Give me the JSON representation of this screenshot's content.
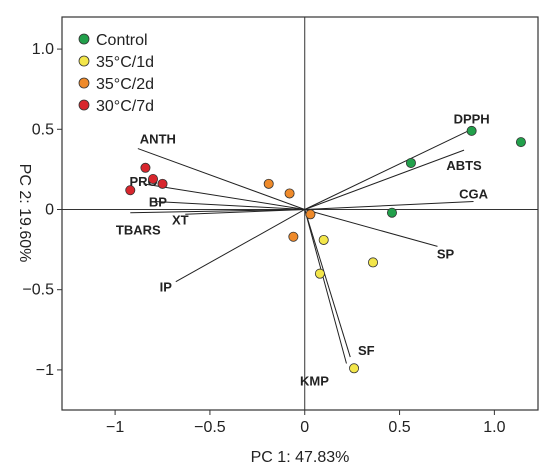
{
  "chart_data": {
    "type": "scatter",
    "title": "",
    "xlabel": "PC 1: 47.83%",
    "ylabel": "PC 2: 19.60%",
    "xlim": [
      -1.28,
      1.23
    ],
    "ylim": [
      -1.25,
      1.2
    ],
    "xticks": [
      -1,
      -0.5,
      0,
      0.5,
      1
    ],
    "xtick_labels": [
      "−1",
      "−0.5",
      "0",
      "0.5",
      "1.0"
    ],
    "yticks": [
      -1,
      -0.5,
      0,
      0.5,
      1
    ],
    "ytick_labels": [
      "−1",
      "−0.5",
      "0",
      "0.5",
      "1.0"
    ],
    "grid": false,
    "legend_position": "top-left",
    "series": [
      {
        "name": "Control",
        "color": "#22a04b",
        "points": [
          [
            1.14,
            0.42
          ],
          [
            0.88,
            0.49
          ],
          [
            0.56,
            0.29
          ],
          [
            0.46,
            -0.02
          ]
        ]
      },
      {
        "name": "35°C/1d",
        "color": "#f3e64a",
        "points": [
          [
            0.1,
            -0.19
          ],
          [
            0.36,
            -0.33
          ],
          [
            0.08,
            -0.4
          ],
          [
            0.26,
            -0.99
          ]
        ]
      },
      {
        "name": "35°C/2d",
        "color": "#ef8a2a",
        "points": [
          [
            -0.19,
            0.16
          ],
          [
            -0.08,
            0.1
          ],
          [
            0.03,
            -0.03
          ],
          [
            -0.06,
            -0.17
          ]
        ]
      },
      {
        "name": "30°C/7d",
        "color": "#d8262d",
        "points": [
          [
            -0.84,
            0.26
          ],
          [
            -0.8,
            0.19
          ],
          [
            -0.75,
            0.16
          ],
          [
            -0.92,
            0.12
          ]
        ]
      }
    ],
    "loadings": [
      {
        "name": "DPPH",
        "x": 0.88,
        "y": 0.5
      },
      {
        "name": "ABTS",
        "x": 0.84,
        "y": 0.37
      },
      {
        "name": "CGA",
        "x": 0.89,
        "y": 0.05
      },
      {
        "name": "SP",
        "x": 0.7,
        "y": -0.23
      },
      {
        "name": "SF",
        "x": 0.24,
        "y": -0.92
      },
      {
        "name": "KMP",
        "x": 0.22,
        "y": -0.96
      },
      {
        "name": "ANTH",
        "x": -0.88,
        "y": 0.38
      },
      {
        "name": "PRO",
        "x": -0.85,
        "y": 0.16
      },
      {
        "name": "BP",
        "x": -0.79,
        "y": 0.05
      },
      {
        "name": "XT",
        "x": -0.63,
        "y": -0.03
      },
      {
        "name": "TBARS",
        "x": -0.92,
        "y": -0.02
      },
      {
        "name": "IP",
        "x": -0.68,
        "y": -0.45
      }
    ]
  }
}
